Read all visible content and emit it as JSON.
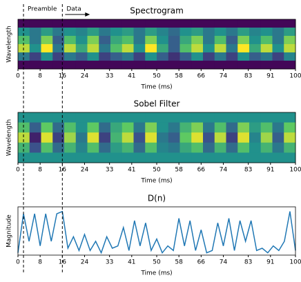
{
  "chart_data": [
    {
      "type": "heatmap",
      "title": "Spectrogram",
      "xlabel": "Time (ms)",
      "ylabel": "Wavelength",
      "xlim": [
        0,
        100
      ],
      "xticks": [
        0,
        8,
        16,
        24,
        33,
        41,
        50,
        58,
        66,
        74,
        83,
        91,
        100
      ],
      "colormap": "viridis",
      "zlim": [
        0,
        1
      ],
      "vlines": [
        2,
        16
      ],
      "annotations": [
        {
          "text": "Preamble",
          "x": 2
        },
        {
          "text": "Data",
          "x": 16
        }
      ],
      "z": [
        [
          0.02,
          0.02,
          0.02,
          0.02,
          0.02,
          0.02,
          0.02,
          0.02,
          0.02,
          0.02,
          0.02,
          0.02,
          0.02,
          0.02,
          0.02,
          0.02,
          0.02,
          0.02,
          0.02,
          0.02,
          0.02,
          0.02,
          0.02,
          0.02
        ],
        [
          0.5,
          0.4,
          0.55,
          0.4,
          0.5,
          0.45,
          0.55,
          0.4,
          0.5,
          0.55,
          0.4,
          0.55,
          0.45,
          0.35,
          0.5,
          0.55,
          0.4,
          0.5,
          0.4,
          0.55,
          0.45,
          0.5,
          0.4,
          0.55
        ],
        [
          0.7,
          0.4,
          0.8,
          0.3,
          0.7,
          0.5,
          0.8,
          0.3,
          0.6,
          0.7,
          0.4,
          0.8,
          0.5,
          0.3,
          0.6,
          0.8,
          0.4,
          0.7,
          0.3,
          0.8,
          0.5,
          0.7,
          0.4,
          0.8
        ],
        [
          0.9,
          0.5,
          1.0,
          0.4,
          0.9,
          0.6,
          0.9,
          0.4,
          0.7,
          0.9,
          0.5,
          1.0,
          0.6,
          0.3,
          0.7,
          0.9,
          0.5,
          0.9,
          0.4,
          1.0,
          0.6,
          0.9,
          0.5,
          0.9
        ],
        [
          0.4,
          0.2,
          0.5,
          0.2,
          0.4,
          0.3,
          0.5,
          0.2,
          0.3,
          0.4,
          0.2,
          0.5,
          0.3,
          0.15,
          0.3,
          0.5,
          0.2,
          0.4,
          0.2,
          0.5,
          0.3,
          0.4,
          0.2,
          0.45
        ],
        [
          0.02,
          0.02,
          0.02,
          0.02,
          0.02,
          0.02,
          0.02,
          0.02,
          0.02,
          0.02,
          0.02,
          0.02,
          0.02,
          0.02,
          0.02,
          0.02,
          0.02,
          0.02,
          0.02,
          0.02,
          0.02,
          0.02,
          0.02,
          0.02
        ]
      ]
    },
    {
      "type": "heatmap",
      "title": "Sobel Filter",
      "xlabel": "Time (ms)",
      "ylabel": "Wavelength",
      "xlim": [
        0,
        100
      ],
      "xticks": [
        0,
        8,
        16,
        24,
        33,
        41,
        50,
        58,
        66,
        74,
        83,
        91,
        100
      ],
      "colormap": "viridis",
      "zlim": [
        -1,
        1
      ],
      "z": [
        [
          0,
          0,
          0,
          0,
          0,
          0,
          0,
          0,
          0,
          0,
          0,
          0,
          0,
          0,
          0,
          0,
          0,
          0,
          0,
          0,
          0,
          0,
          0,
          0
        ],
        [
          0.4,
          -0.4,
          0.5,
          -0.3,
          0.4,
          0,
          0.5,
          -0.3,
          0.2,
          0.5,
          -0.2,
          0.6,
          0,
          -0.2,
          0.3,
          0.6,
          -0.2,
          0.4,
          -0.3,
          0.6,
          0.1,
          0.4,
          -0.2,
          0.5
        ],
        [
          0.8,
          -0.8,
          0.9,
          -0.6,
          0.7,
          -0.2,
          0.9,
          -0.6,
          0.3,
          0.8,
          -0.5,
          0.9,
          -0.2,
          -0.4,
          0.5,
          0.9,
          -0.5,
          0.8,
          -0.6,
          0.9,
          -0.1,
          0.7,
          -0.4,
          0.8
        ],
        [
          0.3,
          -0.5,
          0.4,
          -0.3,
          0.3,
          -0.1,
          0.4,
          -0.3,
          0.1,
          0.3,
          -0.3,
          0.4,
          -0.1,
          -0.2,
          0.2,
          0.4,
          -0.3,
          0.3,
          -0.3,
          0.4,
          0,
          0.3,
          -0.2,
          0.3
        ],
        [
          0,
          0,
          0,
          0,
          0,
          0,
          0,
          0,
          0,
          0,
          0,
          0,
          0,
          0,
          0,
          0,
          0,
          0,
          0,
          0,
          0,
          0,
          0,
          0
        ]
      ]
    },
    {
      "type": "line",
      "title": "D(n)",
      "xlabel": "Time (ms)",
      "ylabel": "Magnitude",
      "xlim": [
        0,
        100
      ],
      "xticks": [
        0,
        8,
        16,
        24,
        33,
        41,
        50,
        58,
        66,
        74,
        83,
        91,
        100
      ],
      "ylim": [
        0,
        1.05
      ],
      "color": "#1f77b4",
      "x": [
        0,
        2,
        4,
        6,
        8,
        10,
        12,
        14,
        16,
        18,
        20,
        22,
        24,
        26,
        28,
        30,
        32,
        34,
        36,
        38,
        40,
        42,
        44,
        46,
        48,
        50,
        52,
        54,
        56,
        58,
        60,
        62,
        64,
        66,
        68,
        70,
        72,
        74,
        76,
        78,
        80,
        82,
        84,
        86,
        88,
        90,
        92,
        94,
        96,
        98,
        100
      ],
      "values": [
        0.05,
        0.9,
        0.3,
        0.9,
        0.2,
        0.9,
        0.3,
        0.9,
        0.95,
        0.15,
        0.4,
        0.1,
        0.45,
        0.1,
        0.3,
        0.05,
        0.4,
        0.15,
        0.2,
        0.6,
        0.1,
        0.75,
        0.2,
        0.7,
        0.1,
        0.35,
        0.05,
        0.2,
        0.1,
        0.8,
        0.2,
        0.75,
        0.1,
        0.55,
        0.05,
        0.1,
        0.7,
        0.2,
        0.8,
        0.1,
        0.75,
        0.3,
        0.75,
        0.1,
        0.15,
        0.05,
        0.2,
        0.1,
        0.3,
        0.95,
        0.1
      ]
    }
  ]
}
